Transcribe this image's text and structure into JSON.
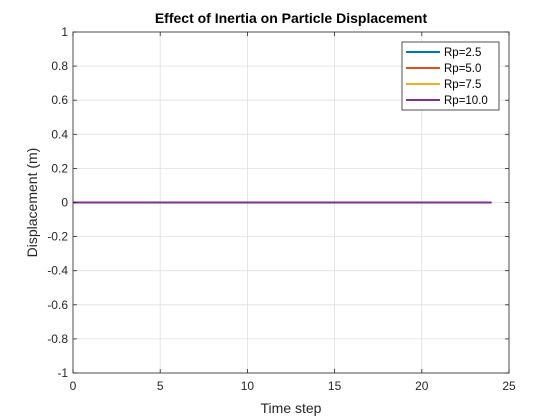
{
  "chart_data": {
    "type": "line",
    "title": "Effect of Inertia on Particle Displacement",
    "xlabel": "Time step",
    "ylabel": "Displacement (m)",
    "xlim": [
      0,
      25
    ],
    "ylim": [
      -1,
      1
    ],
    "xticks": [
      0,
      5,
      10,
      15,
      20,
      25
    ],
    "yticks": [
      -1,
      -0.8,
      -0.6,
      -0.4,
      -0.2,
      0,
      0.2,
      0.4,
      0.6,
      0.8,
      1
    ],
    "grid": true,
    "legend_position": "top-right",
    "x": [
      0,
      1,
      2,
      3,
      4,
      5,
      6,
      7,
      8,
      9,
      10,
      11,
      12,
      13,
      14,
      15,
      16,
      17,
      18,
      19,
      20,
      21,
      22,
      23,
      24
    ],
    "series": [
      {
        "name": "Rp=2.5",
        "color": "#0072BD",
        "values": [
          0,
          0,
          0,
          0,
          0,
          0,
          0,
          0,
          0,
          0,
          0,
          0,
          0,
          0,
          0,
          0,
          0,
          0,
          0,
          0,
          0,
          0,
          0,
          0,
          0
        ]
      },
      {
        "name": "Rp=5.0",
        "color": "#D95319",
        "values": [
          0,
          0,
          0,
          0,
          0,
          0,
          0,
          0,
          0,
          0,
          0,
          0,
          0,
          0,
          0,
          0,
          0,
          0,
          0,
          0,
          0,
          0,
          0,
          0,
          0
        ]
      },
      {
        "name": "Rp=7.5",
        "color": "#EDB120",
        "values": [
          0,
          0,
          0,
          0,
          0,
          0,
          0,
          0,
          0,
          0,
          0,
          0,
          0,
          0,
          0,
          0,
          0,
          0,
          0,
          0,
          0,
          0,
          0,
          0,
          0
        ]
      },
      {
        "name": "Rp=10.0",
        "color": "#7E2F8E",
        "values": [
          0,
          0,
          0,
          0,
          0,
          0,
          0,
          0,
          0,
          0,
          0,
          0,
          0,
          0,
          0,
          0,
          0,
          0,
          0,
          0,
          0,
          0,
          0,
          0,
          0
        ]
      }
    ]
  }
}
